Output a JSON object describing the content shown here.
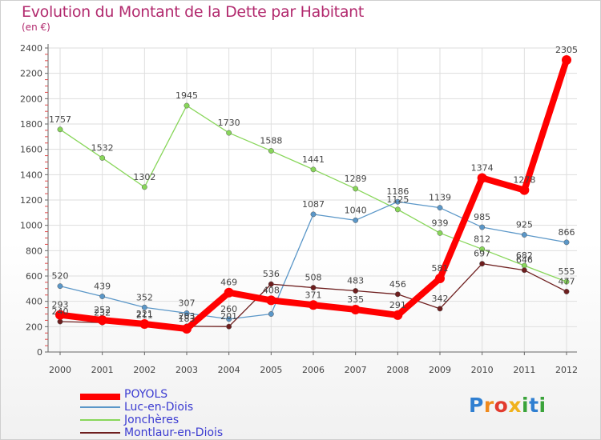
{
  "title": "Evolution du Montant de la Dette par Habitant",
  "subtitle": "(en €)",
  "logo": {
    "letters": [
      "P",
      "r",
      "o",
      "x",
      "i",
      "t",
      "i"
    ],
    "colors": [
      "#2f7fd1",
      "#f08a1c",
      "#e23b2e",
      "#f0b21c",
      "#3aa33a",
      "#2f7fd1",
      "#3aa33a"
    ]
  },
  "chart_data": {
    "type": "line",
    "x": [
      "2000",
      "2001",
      "2002",
      "2003",
      "2004",
      "2005",
      "2006",
      "2007",
      "2008",
      "2009",
      "2010",
      "2011",
      "2012"
    ],
    "ylim": [
      0,
      2400
    ],
    "yticks": [
      "0",
      "200",
      "400",
      "600",
      "800",
      "1000",
      "1200",
      "1400",
      "1600",
      "1800",
      "2000",
      "2200",
      "2400"
    ],
    "grid": true,
    "legend_position": "bottom-left",
    "series": [
      {
        "name": "POYOLS",
        "color": "#ff0000",
        "values": [
          293,
          252,
          221,
          183,
          469,
          408,
          371,
          335,
          291,
          581,
          1374,
          1278,
          2305
        ],
        "labels": [
          "293",
          "252",
          "221",
          "183",
          "469",
          "408",
          "371",
          "335",
          "291",
          "581",
          "1374",
          "1278",
          "2305"
        ]
      },
      {
        "name": "Luc-en-Diois",
        "color": "#5b97c8",
        "values": [
          520,
          439,
          352,
          307,
          260,
          300,
          1087,
          1040,
          1186,
          1139,
          985,
          925,
          866
        ],
        "labels": [
          "520",
          "439",
          "352",
          "307",
          "260",
          "",
          "1087",
          "1040",
          "1186",
          "1139",
          "985",
          "925",
          "866"
        ]
      },
      {
        "name": "Jonchères",
        "color": "#88d65a",
        "values": [
          1757,
          1532,
          1302,
          1945,
          1730,
          1588,
          1441,
          1289,
          1125,
          939,
          812,
          682,
          555
        ],
        "labels": [
          "1757",
          "1532",
          "1302",
          "1945",
          "1730",
          "1588",
          "1441",
          "1289",
          "1125",
          "939",
          "812",
          "682",
          "555"
        ]
      },
      {
        "name": "Montlaur-en-Diois",
        "color": "#6e1e1e",
        "values": [
          240,
          232,
          211,
          203,
          201,
          536,
          508,
          483,
          456,
          342,
          697,
          646,
          477
        ],
        "labels": [
          "240",
          "232",
          "211",
          "203",
          "201",
          "536",
          "508",
          "483",
          "456",
          "342",
          "697",
          "646",
          "477"
        ]
      }
    ]
  }
}
